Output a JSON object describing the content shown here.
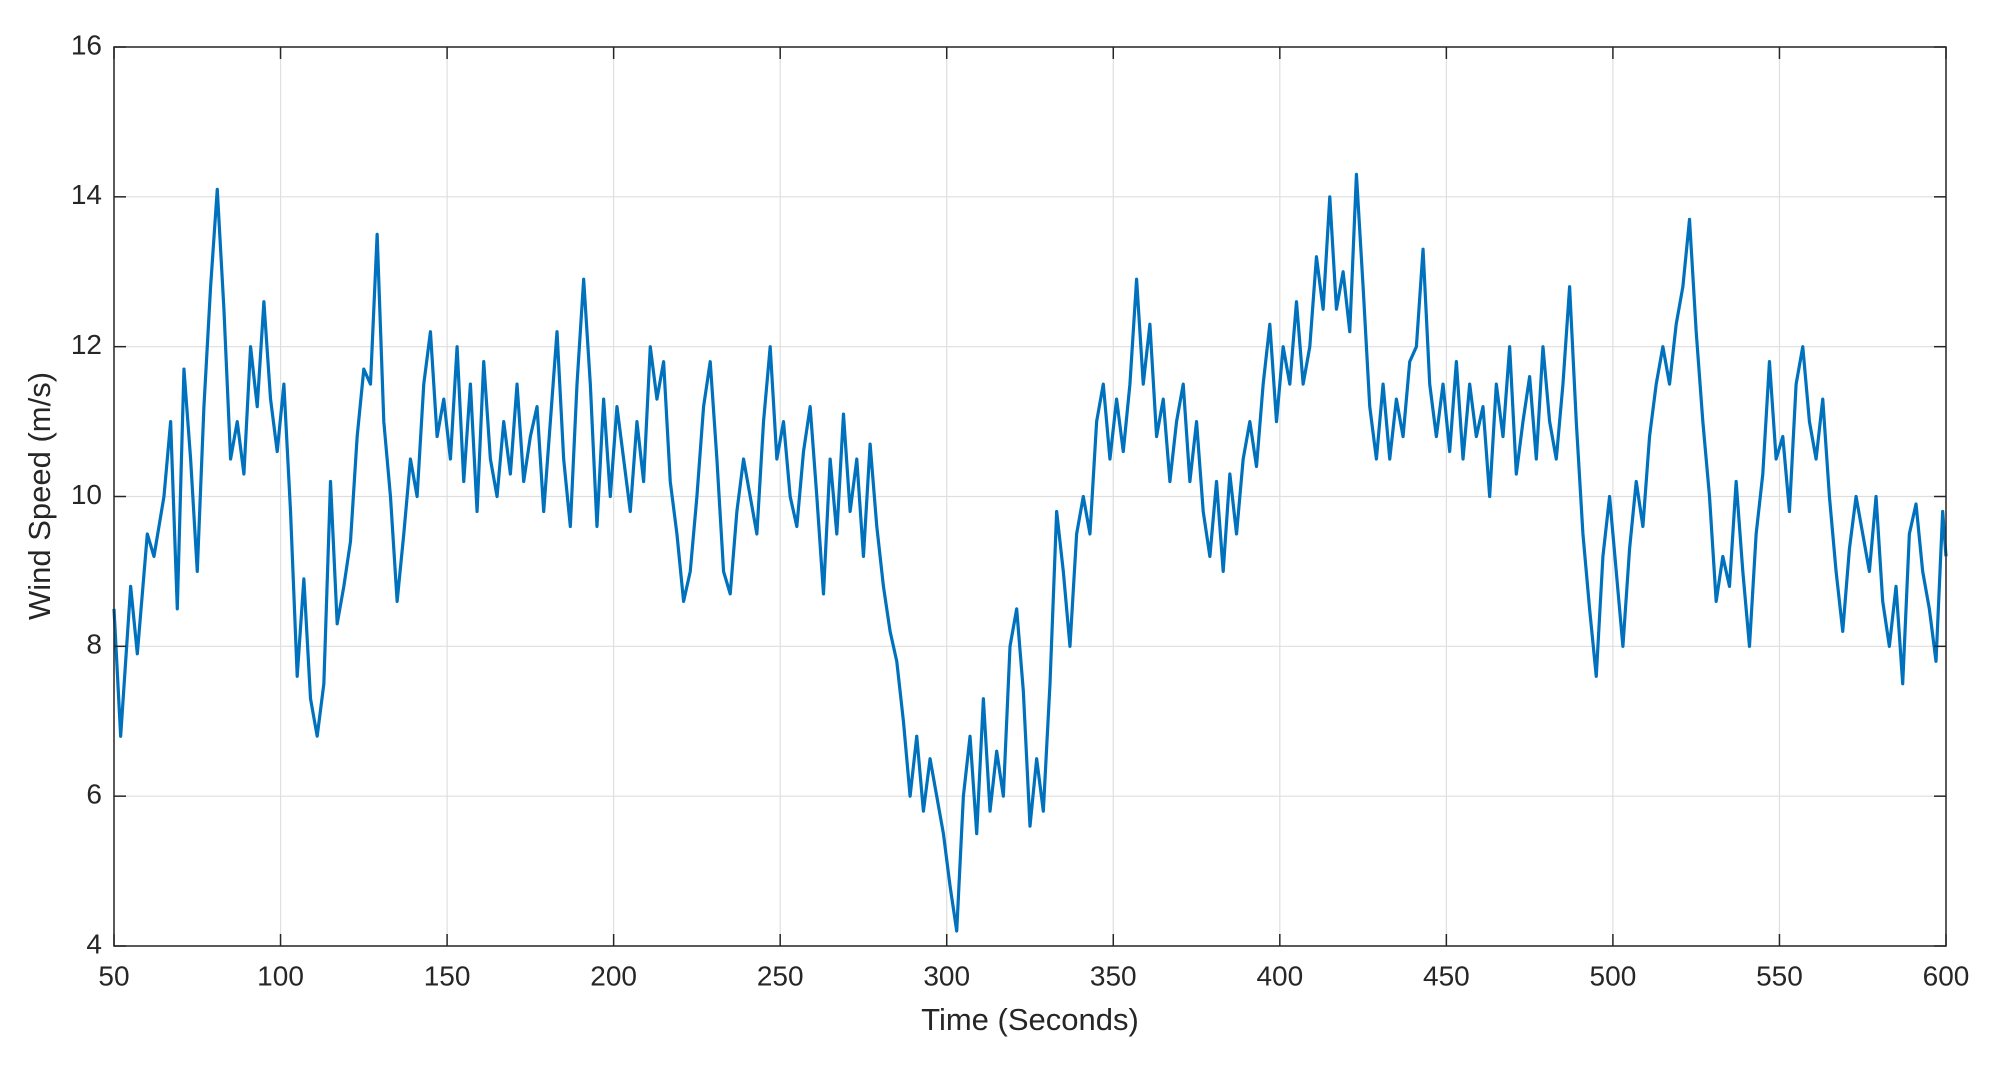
{
  "chart_data": {
    "type": "line",
    "x_label": "Time (Seconds)",
    "y_label": "Wind Speed (m/s)",
    "color": "#0072bd",
    "grid": true,
    "xlim": [
      50,
      600
    ],
    "xticks": [
      50,
      100,
      150,
      200,
      250,
      300,
      350,
      400,
      450,
      500,
      550,
      600
    ],
    "ylim": [
      4,
      16
    ],
    "yticks": [
      4,
      6,
      8,
      10,
      12,
      14,
      16
    ],
    "x": [
      50,
      52,
      55,
      57,
      60,
      62,
      65,
      67,
      69,
      71,
      73,
      75,
      77,
      79,
      81,
      83,
      85,
      87,
      89,
      91,
      93,
      95,
      97,
      99,
      101,
      103,
      105,
      107,
      109,
      111,
      113,
      115,
      117,
      119,
      121,
      123,
      125,
      127,
      129,
      131,
      133,
      135,
      137,
      139,
      141,
      143,
      145,
      147,
      149,
      151,
      153,
      155,
      157,
      159,
      161,
      163,
      165,
      167,
      169,
      171,
      173,
      175,
      177,
      179,
      181,
      183,
      185,
      187,
      189,
      191,
      193,
      195,
      197,
      199,
      201,
      203,
      205,
      207,
      209,
      211,
      213,
      215,
      217,
      219,
      221,
      223,
      225,
      227,
      229,
      231,
      233,
      235,
      237,
      239,
      241,
      243,
      245,
      247,
      249,
      251,
      253,
      255,
      257,
      259,
      261,
      263,
      265,
      267,
      269,
      271,
      273,
      275,
      277,
      279,
      281,
      283,
      285,
      287,
      289,
      291,
      293,
      295,
      297,
      299,
      301,
      303,
      305,
      307,
      309,
      311,
      313,
      315,
      317,
      319,
      321,
      323,
      325,
      327,
      329,
      331,
      333,
      335,
      337,
      339,
      341,
      343,
      345,
      347,
      349,
      351,
      353,
      355,
      357,
      359,
      361,
      363,
      365,
      367,
      369,
      371,
      373,
      375,
      377,
      379,
      381,
      383,
      385,
      387,
      389,
      391,
      393,
      395,
      397,
      399,
      401,
      403,
      405,
      407,
      409,
      411,
      413,
      415,
      417,
      419,
      421,
      423,
      425,
      427,
      429,
      431,
      433,
      435,
      437,
      439,
      441,
      443,
      445,
      447,
      449,
      451,
      453,
      455,
      457,
      459,
      461,
      463,
      465,
      467,
      469,
      471,
      473,
      475,
      477,
      479,
      481,
      483,
      485,
      487,
      489,
      491,
      493,
      495,
      497,
      499,
      501,
      503,
      505,
      507,
      509,
      511,
      513,
      515,
      517,
      519,
      521,
      523,
      525,
      527,
      529,
      531,
      533,
      535,
      537,
      539,
      541,
      543,
      545,
      547,
      549,
      551,
      553,
      555,
      557,
      559,
      561,
      563,
      565,
      567,
      569,
      571,
      573,
      575,
      577,
      579,
      581,
      583,
      585,
      587,
      589,
      591,
      593,
      595,
      597,
      599,
      600
    ],
    "values": [
      8.5,
      6.8,
      8.8,
      7.9,
      9.5,
      9.2,
      10.0,
      11.0,
      8.5,
      11.7,
      10.5,
      9.0,
      11.2,
      12.8,
      14.1,
      12.5,
      10.5,
      11.0,
      10.3,
      12.0,
      11.2,
      12.6,
      11.3,
      10.6,
      11.5,
      9.8,
      7.6,
      8.9,
      7.3,
      6.8,
      7.5,
      10.2,
      8.3,
      8.8,
      9.4,
      10.8,
      11.7,
      11.5,
      13.5,
      11.0,
      10.0,
      8.6,
      9.5,
      10.5,
      10.0,
      11.5,
      12.2,
      10.8,
      11.3,
      10.5,
      12.0,
      10.2,
      11.5,
      9.8,
      11.8,
      10.5,
      10.0,
      11.0,
      10.3,
      11.5,
      10.2,
      10.8,
      11.2,
      9.8,
      11.0,
      12.2,
      10.5,
      9.6,
      11.5,
      12.9,
      11.5,
      9.6,
      11.3,
      10.0,
      11.2,
      10.5,
      9.8,
      11.0,
      10.2,
      12.0,
      11.3,
      11.8,
      10.2,
      9.5,
      8.6,
      9.0,
      10.0,
      11.2,
      11.8,
      10.5,
      9.0,
      8.7,
      9.8,
      10.5,
      10.0,
      9.5,
      11.0,
      12.0,
      10.5,
      11.0,
      10.0,
      9.6,
      10.6,
      11.2,
      10.0,
      8.7,
      10.5,
      9.5,
      11.1,
      9.8,
      10.5,
      9.2,
      10.7,
      9.6,
      8.8,
      8.2,
      7.8,
      7.0,
      6.0,
      6.8,
      5.8,
      6.5,
      6.0,
      5.5,
      4.8,
      4.2,
      6.0,
      6.8,
      5.5,
      7.3,
      5.8,
      6.6,
      6.0,
      8.0,
      8.5,
      7.4,
      5.6,
      6.5,
      5.8,
      7.5,
      9.8,
      9.0,
      8.0,
      9.5,
      10.0,
      9.5,
      11.0,
      11.5,
      10.5,
      11.3,
      10.6,
      11.5,
      12.9,
      11.5,
      12.3,
      10.8,
      11.3,
      10.2,
      11.0,
      11.5,
      10.2,
      11.0,
      9.8,
      9.2,
      10.2,
      9.0,
      10.3,
      9.5,
      10.5,
      11.0,
      10.4,
      11.5,
      12.3,
      11.0,
      12.0,
      11.5,
      12.6,
      11.5,
      12.0,
      13.2,
      12.5,
      14.0,
      12.5,
      13.0,
      12.2,
      14.3,
      12.8,
      11.2,
      10.5,
      11.5,
      10.5,
      11.3,
      10.8,
      11.8,
      12.0,
      13.3,
      11.5,
      10.8,
      11.5,
      10.6,
      11.8,
      10.5,
      11.5,
      10.8,
      11.2,
      10.0,
      11.5,
      10.8,
      12.0,
      10.3,
      11.0,
      11.6,
      10.5,
      12.0,
      11.0,
      10.5,
      11.5,
      12.8,
      11.0,
      9.5,
      8.5,
      7.6,
      9.2,
      10.0,
      9.0,
      8.0,
      9.3,
      10.2,
      9.6,
      10.8,
      11.5,
      12.0,
      11.5,
      12.3,
      12.8,
      13.7,
      12.2,
      11.0,
      10.0,
      8.6,
      9.2,
      8.8,
      10.2,
      9.0,
      8.0,
      9.5,
      10.3,
      11.8,
      10.5,
      10.8,
      9.8,
      11.5,
      12.0,
      11.0,
      10.5,
      11.3,
      10.0,
      9.0,
      8.2,
      9.3,
      10.0,
      9.5,
      9.0,
      10.0,
      8.6,
      8.0,
      8.8,
      7.5,
      9.5,
      9.9,
      9.0,
      8.5,
      7.8,
      9.8,
      9.2
    ]
  }
}
